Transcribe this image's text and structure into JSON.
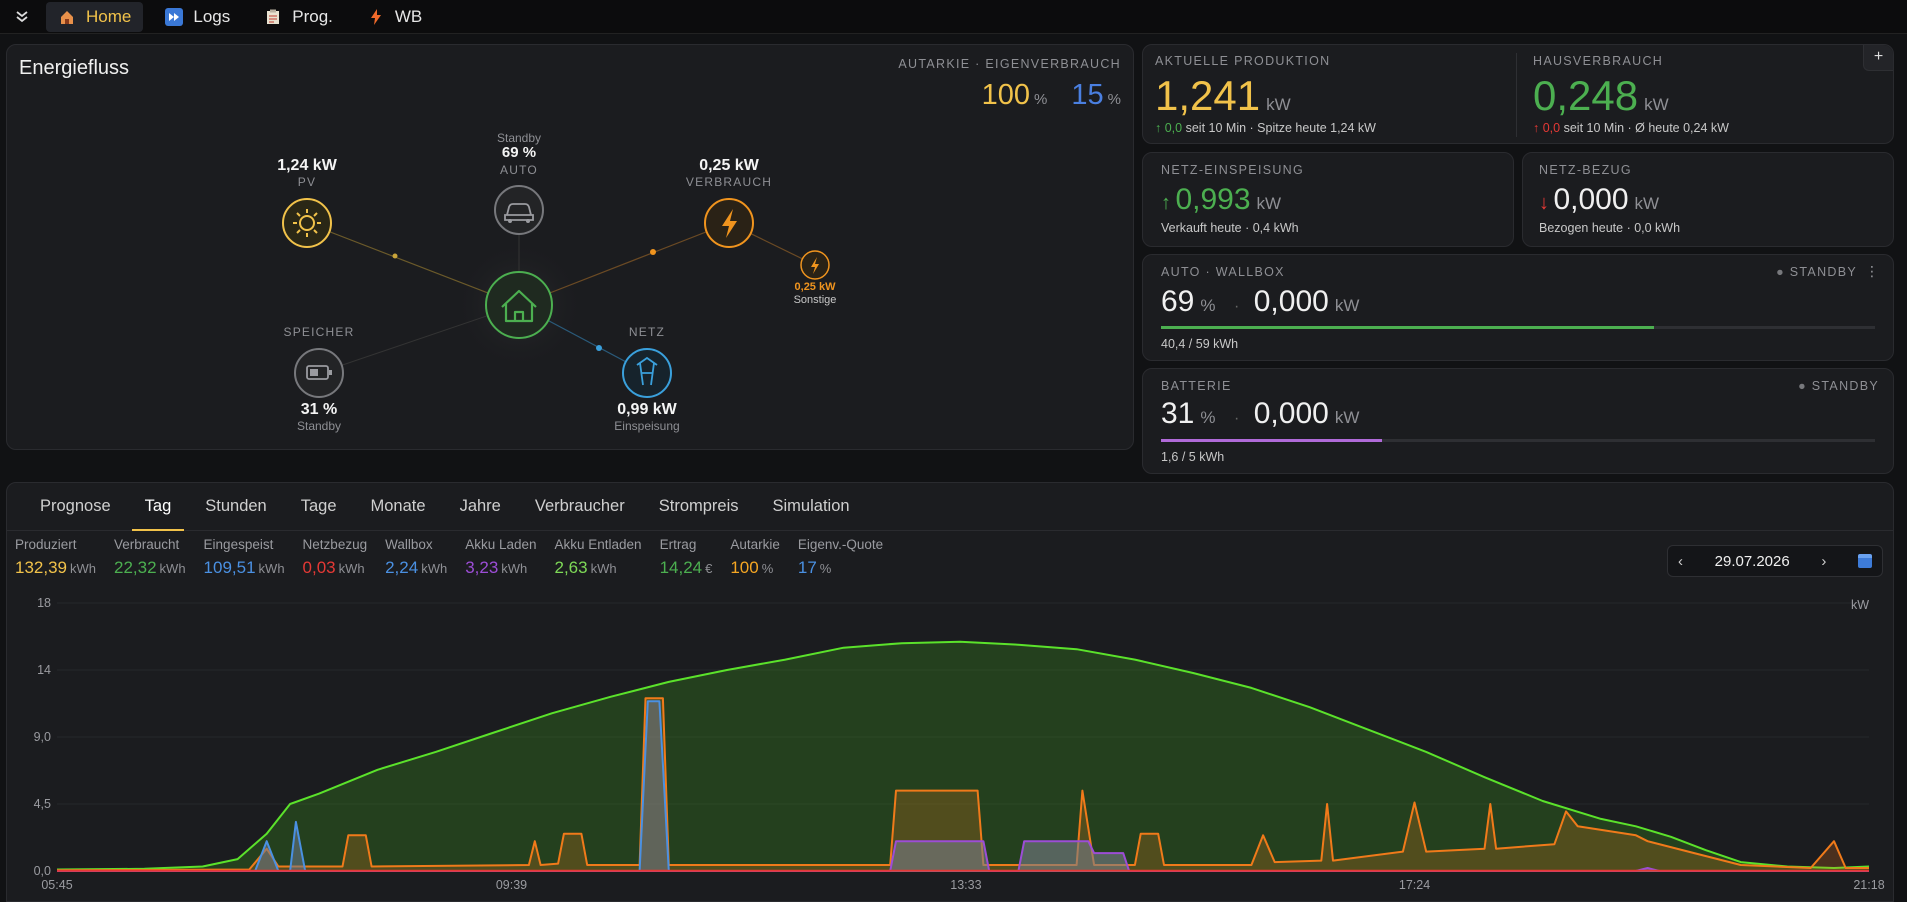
{
  "nav": {
    "tabs": [
      {
        "label": "Home",
        "icon": "house-icon"
      },
      {
        "label": "Logs",
        "icon": "fast-forward-icon"
      },
      {
        "label": "Prog.",
        "icon": "clipboard-icon"
      },
      {
        "label": "WB",
        "icon": "lightning-icon"
      }
    ],
    "active_index": 0
  },
  "flow": {
    "title": "Energiefluss",
    "autarkie_label": "AUTARKIE · EIGENVERBRAUCH",
    "autarkie_value": "100",
    "eigenverbrauch_value": "15",
    "percent_unit": "%",
    "pv": {
      "value": "1,24 kW",
      "label": "PV"
    },
    "auto": {
      "status": "Standby",
      "percent": "69 %",
      "label": "AUTO"
    },
    "verbrauch": {
      "value": "0,25 kW",
      "label": "VERBRAUCH"
    },
    "sonstige": {
      "value": "0,25 kW",
      "label": "Sonstige"
    },
    "speicher": {
      "label": "SPEICHER",
      "value": "31 %",
      "status": "Standby"
    },
    "netz": {
      "label": "NETZ",
      "value": "0,99 kW",
      "status": "Einspeisung"
    }
  },
  "produktion": {
    "label": "AKTUELLE PRODUKTION",
    "value": "1,241",
    "unit": "kW",
    "delta": "0,0",
    "delta_dir": "up",
    "detail": "seit 10 Min · Spitze heute 1,24 kW"
  },
  "hausverbrauch": {
    "label": "HAUSVERBRAUCH",
    "value": "0,248",
    "unit": "kW",
    "delta": "0,0",
    "delta_dir": "up",
    "detail": "seit 10 Min · Ø heute 0,24 kW",
    "add_label": "+"
  },
  "einspeisung": {
    "label": "NETZ-EINSPEISUNG",
    "value": "0,993",
    "unit": "kW",
    "detail": "Verkauft heute · 0,4 kWh"
  },
  "bezug": {
    "label": "NETZ-BEZUG",
    "value": "0,000",
    "unit": "kW",
    "detail": "Bezogen heute · 0,0 kWh"
  },
  "wallbox": {
    "label": "AUTO · WALLBOX",
    "status": "STANDBY",
    "percent": "69",
    "percent_unit": "%",
    "power": "0,000",
    "unit": "kW",
    "progress": 0.69,
    "detail": "40,4 / 59 kWh",
    "color": "#4caf50"
  },
  "batterie": {
    "label": "BATTERIE",
    "status": "STANDBY",
    "percent": "31",
    "percent_unit": "%",
    "power": "0,000",
    "unit": "kW",
    "progress": 0.31,
    "detail": "1,6 / 5 kWh",
    "color": "#b06ad8"
  },
  "history": {
    "tabs": [
      "Prognose",
      "Tag",
      "Stunden",
      "Tage",
      "Monate",
      "Jahre",
      "Verbraucher",
      "Strompreis",
      "Simulation"
    ],
    "active_index": 1,
    "stats": [
      {
        "name": "Produziert",
        "value": "132,39",
        "unit": "kWh",
        "color": "#f1c24a"
      },
      {
        "name": "Verbraucht",
        "value": "22,32",
        "unit": "kWh",
        "color": "#4caf50"
      },
      {
        "name": "Eingespeist",
        "value": "109,51",
        "unit": "kWh",
        "color": "#4a90e2"
      },
      {
        "name": "Netzbezug",
        "value": "0,03",
        "unit": "kWh",
        "color": "#e53935"
      },
      {
        "name": "Wallbox",
        "value": "2,24",
        "unit": "kWh",
        "color": "#4a90e2"
      },
      {
        "name": "Akku Laden",
        "value": "3,23",
        "unit": "kWh",
        "color": "#9c4dd6"
      },
      {
        "name": "Akku Entladen",
        "value": "2,63",
        "unit": "kWh",
        "color": "#7ed957"
      },
      {
        "name": "Ertrag",
        "value": "14,24",
        "unit": "€",
        "color": "#4caf50"
      },
      {
        "name": "Autarkie",
        "value": "100",
        "unit": "%",
        "color": "#f5a623"
      },
      {
        "name": "Eigenv.-Quote",
        "value": "17",
        "unit": "%",
        "color": "#4a90e2"
      }
    ],
    "date": "29.07.2026",
    "prev_label": "‹",
    "next_label": "›"
  },
  "chart_data": {
    "type": "area",
    "ylabel": "kW",
    "ylim": [
      0,
      18
    ],
    "yticks": [
      "0,0",
      "4,5",
      "9,0",
      "14",
      "18"
    ],
    "ytick_values": [
      0,
      4.5,
      9,
      13.5,
      18
    ],
    "xticks": [
      "05:45",
      "09:39",
      "13:33",
      "17:24",
      "21:18"
    ],
    "xtick_values": [
      5.75,
      9.65,
      13.55,
      17.4,
      21.3
    ],
    "xlim": [
      5.75,
      21.3
    ],
    "series": [
      {
        "color": "#5be22b",
        "fill": "rgba(60,150,30,0.30)",
        "points": [
          [
            5.75,
            0.1
          ],
          [
            6.5,
            0.15
          ],
          [
            7.0,
            0.3
          ],
          [
            7.3,
            0.8
          ],
          [
            7.55,
            2.5
          ],
          [
            7.75,
            4.5
          ],
          [
            8.0,
            5.2
          ],
          [
            8.5,
            6.8
          ],
          [
            9.0,
            8.0
          ],
          [
            9.5,
            9.3
          ],
          [
            10.0,
            10.6
          ],
          [
            10.5,
            11.7
          ],
          [
            11.0,
            12.7
          ],
          [
            11.5,
            13.5
          ],
          [
            12.0,
            14.2
          ],
          [
            12.5,
            15.0
          ],
          [
            13.0,
            15.3
          ],
          [
            13.5,
            15.4
          ],
          [
            14.0,
            15.2
          ],
          [
            14.5,
            14.9
          ],
          [
            15.0,
            14.2
          ],
          [
            15.5,
            13.3
          ],
          [
            16.0,
            12.3
          ],
          [
            16.5,
            11.0
          ],
          [
            17.0,
            9.5
          ],
          [
            17.5,
            8.0
          ],
          [
            18.0,
            6.3
          ],
          [
            18.5,
            4.7
          ],
          [
            19.0,
            3.5
          ],
          [
            19.3,
            3.0
          ],
          [
            19.6,
            2.3
          ],
          [
            19.9,
            1.4
          ],
          [
            20.2,
            0.6
          ],
          [
            20.6,
            0.3
          ],
          [
            21.0,
            0.2
          ],
          [
            21.3,
            0.3
          ]
        ]
      },
      {
        "color": "#f07a1a",
        "fill": "rgba(240,122,26,0.22)",
        "points": [
          [
            5.75,
            0.05
          ],
          [
            7.4,
            0.1
          ],
          [
            7.55,
            1.5
          ],
          [
            7.65,
            0.3
          ],
          [
            8.2,
            0.3
          ],
          [
            8.25,
            2.4
          ],
          [
            8.4,
            2.4
          ],
          [
            8.45,
            0.3
          ],
          [
            9.8,
            0.4
          ],
          [
            9.85,
            2.0
          ],
          [
            9.9,
            0.4
          ],
          [
            10.05,
            0.5
          ],
          [
            10.1,
            2.5
          ],
          [
            10.25,
            2.5
          ],
          [
            10.3,
            0.4
          ],
          [
            10.75,
            0.4
          ],
          [
            10.8,
            11.6
          ],
          [
            10.95,
            11.6
          ],
          [
            11.0,
            0.4
          ],
          [
            12.9,
            0.4
          ],
          [
            12.95,
            5.4
          ],
          [
            13.65,
            5.4
          ],
          [
            13.7,
            0.4
          ],
          [
            14.5,
            0.4
          ],
          [
            14.55,
            5.4
          ],
          [
            14.65,
            0.4
          ],
          [
            15.0,
            0.4
          ],
          [
            15.05,
            2.5
          ],
          [
            15.2,
            2.5
          ],
          [
            15.25,
            0.4
          ],
          [
            16.0,
            0.4
          ],
          [
            16.1,
            2.4
          ],
          [
            16.2,
            0.6
          ],
          [
            16.6,
            0.7
          ],
          [
            16.65,
            4.5
          ],
          [
            16.7,
            0.7
          ],
          [
            17.3,
            1.3
          ],
          [
            17.4,
            4.6
          ],
          [
            17.5,
            1.3
          ],
          [
            18.0,
            1.5
          ],
          [
            18.05,
            4.5
          ],
          [
            18.1,
            1.5
          ],
          [
            18.6,
            1.8
          ],
          [
            18.7,
            4.0
          ],
          [
            18.8,
            3.0
          ],
          [
            19.3,
            2.4
          ],
          [
            19.4,
            2.0
          ],
          [
            19.8,
            1.2
          ],
          [
            20.2,
            0.4
          ],
          [
            20.8,
            0.2
          ],
          [
            21.0,
            2.0
          ],
          [
            21.1,
            0.2
          ],
          [
            21.3,
            0.2
          ]
        ]
      },
      {
        "color": "#4a90e2",
        "fill": "rgba(110,120,140,0.55)",
        "points": [
          [
            5.75,
            0
          ],
          [
            7.45,
            0
          ],
          [
            7.55,
            2.0
          ],
          [
            7.65,
            0
          ],
          [
            7.75,
            0
          ],
          [
            7.8,
            3.3
          ],
          [
            7.88,
            0
          ],
          [
            10.75,
            0
          ],
          [
            10.82,
            11.4
          ],
          [
            10.92,
            11.4
          ],
          [
            11.0,
            0
          ],
          [
            21.3,
            0
          ]
        ]
      },
      {
        "color": "#9c4dd6",
        "fill": "rgba(120,125,135,0.6)",
        "points": [
          [
            5.75,
            0
          ],
          [
            12.9,
            0
          ],
          [
            12.95,
            2.0
          ],
          [
            13.7,
            2.0
          ],
          [
            13.75,
            0
          ],
          [
            14.0,
            0
          ],
          [
            14.05,
            2.0
          ],
          [
            14.6,
            2.0
          ],
          [
            14.65,
            1.2
          ],
          [
            14.9,
            1.2
          ],
          [
            14.95,
            0
          ],
          [
            19.3,
            0
          ],
          [
            19.4,
            0.2
          ],
          [
            19.5,
            0
          ],
          [
            21.3,
            0
          ]
        ]
      },
      {
        "color": "#e53935",
        "fill": "none",
        "points": [
          [
            5.75,
            0.02
          ],
          [
            21.3,
            0.02
          ]
        ]
      }
    ]
  }
}
